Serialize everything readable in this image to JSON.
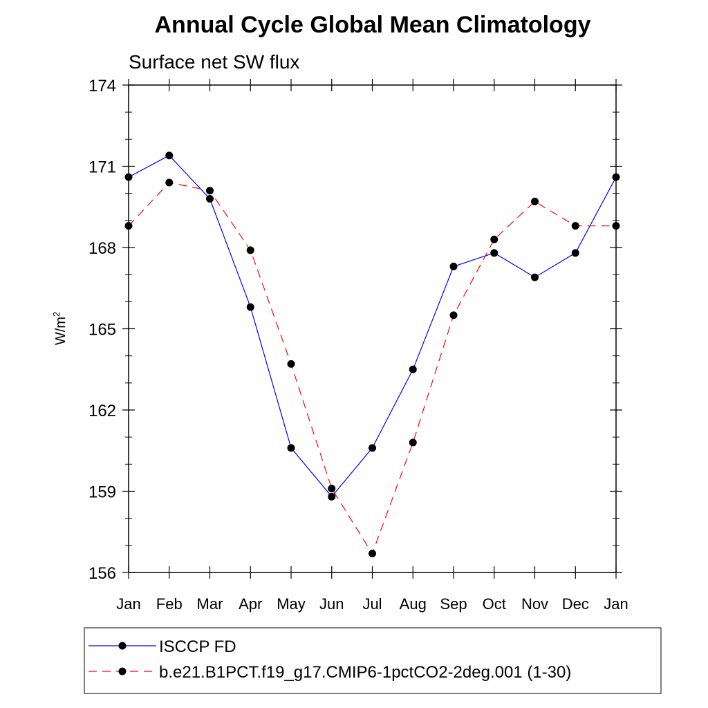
{
  "chart_data": {
    "type": "line",
    "title": "Annual Cycle Global Mean Climatology",
    "subtitle": "Surface net SW flux",
    "ylabel": "W/m",
    "ylabel_sup": "2",
    "xlabel": "",
    "categories": [
      "Jan",
      "Feb",
      "Mar",
      "Apr",
      "May",
      "Jun",
      "Jul",
      "Aug",
      "Sep",
      "Oct",
      "Nov",
      "Dec",
      "Jan"
    ],
    "yticks": [
      "156",
      "159",
      "162",
      "165",
      "168",
      "171",
      "174"
    ],
    "ylim": [
      156,
      174
    ],
    "grid": false,
    "legend_position": "bottom",
    "series": [
      {
        "name": "ISCCP FD",
        "color": "#0000ff",
        "dash": "solid",
        "values": [
          170.6,
          171.4,
          169.8,
          165.8,
          160.6,
          158.8,
          160.6,
          163.5,
          167.3,
          167.8,
          166.9,
          167.8,
          170.6
        ]
      },
      {
        "name": "b.e21.B1PCT.f19_g17.CMIP6-1pctCO2-2deg.001 (1-30)",
        "color": "#ff0000",
        "dash": "dashed",
        "values": [
          168.8,
          170.4,
          170.1,
          167.9,
          163.7,
          159.1,
          156.7,
          160.8,
          165.5,
          168.3,
          169.7,
          168.8,
          168.8
        ]
      }
    ]
  }
}
